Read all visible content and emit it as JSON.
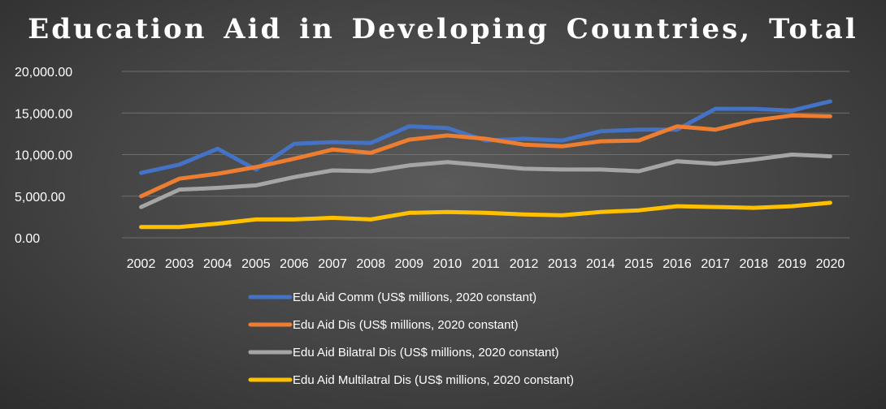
{
  "chart_data": {
    "type": "line",
    "title": "Education  Aid  in Developing Countries, Total",
    "xlabel": "",
    "ylabel": "",
    "ylim": [
      0,
      20000
    ],
    "y_ticks": [
      "0.00",
      "5,000.00",
      "10,000.00",
      "15,000.00",
      "20,000.00"
    ],
    "grid": true,
    "legend_position": "bottom",
    "x": [
      "2002",
      "2003",
      "2004",
      "2005",
      "2006",
      "2007",
      "2008",
      "2009",
      "2010",
      "2011",
      "2012",
      "2013",
      "2014",
      "2015",
      "2016",
      "2017",
      "2018",
      "2019",
      "2020"
    ],
    "series": [
      {
        "name": "Edu Aid Comm (US$ millions, 2020 constant)",
        "color": "#4472c4",
        "values": [
          7800,
          8800,
          10700,
          8200,
          11300,
          11500,
          11400,
          13400,
          13200,
          11700,
          11900,
          11700,
          12800,
          13000,
          13000,
          15500,
          15500,
          15300,
          16400
        ]
      },
      {
        "name": "Edu Aid Dis (US$ millions, 2020 constant)",
        "color": "#ed7d31",
        "values": [
          5000,
          7100,
          7700,
          8500,
          9500,
          10600,
          10200,
          11800,
          12300,
          11900,
          11200,
          11000,
          11600,
          11700,
          13400,
          13000,
          14100,
          14700,
          14600
        ]
      },
      {
        "name": "Edu Aid Bilatral Dis (US$ millions, 2020 constant)",
        "color": "#a5a5a5",
        "values": [
          3700,
          5800,
          6000,
          6300,
          7300,
          8100,
          8000,
          8700,
          9100,
          8700,
          8300,
          8200,
          8200,
          8000,
          9200,
          8900,
          9400,
          10000,
          9800
        ]
      },
      {
        "name": "Edu Aid Multilatral  Dis (US$ millions, 2020 constant)",
        "color": "#ffc000",
        "values": [
          1300,
          1300,
          1700,
          2200,
          2200,
          2400,
          2200,
          3000,
          3100,
          3000,
          2800,
          2700,
          3100,
          3300,
          3800,
          3700,
          3600,
          3800,
          4200
        ]
      }
    ]
  }
}
